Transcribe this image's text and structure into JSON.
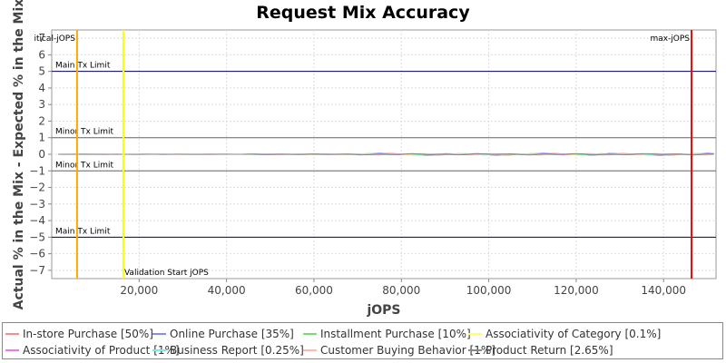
{
  "chart_data": {
    "type": "line",
    "title": "Request Mix Accuracy",
    "xlabel": "jOPS",
    "ylabel": "Actual % in the Mix - Expected % in the Mix",
    "xlim": [
      0,
      152000
    ],
    "ylim": [
      -7.5,
      7.5
    ],
    "x_ticks": [
      20000,
      40000,
      60000,
      80000,
      100000,
      120000,
      140000
    ],
    "x_tick_labels": [
      "20,000",
      "40,000",
      "60,000",
      "80,000",
      "100,000",
      "120,000",
      "140,000"
    ],
    "y_ticks": [
      7,
      6,
      5,
      4,
      3,
      2,
      1,
      0,
      -1,
      -2,
      -3,
      -4,
      -5,
      -6,
      -7
    ],
    "y_tick_labels": [
      "7",
      "6",
      "5",
      "4",
      "3",
      "2",
      "1",
      "0",
      "−1",
      "−2",
      "−3",
      "−4",
      "−5",
      "−6",
      "−7"
    ],
    "grid": true,
    "legend_position": "bottom",
    "horizontal_lines": [
      {
        "label": "Main Tx Limit",
        "y": 5,
        "color": "#000066"
      },
      {
        "label": "Minor Tx Limit",
        "y": 1,
        "color": "#666666"
      },
      {
        "label": "Minor Tx Limit",
        "y": -1,
        "color": "#666666"
      },
      {
        "label": "Main Tx Limit",
        "y": -5,
        "color": "#000066"
      }
    ],
    "vertical_lines": [
      {
        "label": "itical-jOPS",
        "x": 5800,
        "color": "#ffaa00"
      },
      {
        "label": "Validation Start jOPS",
        "x": 16400,
        "color": "#ffff00"
      },
      {
        "label": "max-jOPS",
        "x": 146400,
        "color": "#ff0000"
      }
    ],
    "series_x_start": 1500,
    "series_x_end": 152000,
    "series_x_step": 1500,
    "series": [
      {
        "name": "In-store Purchase [50%]",
        "color": "#ff8888",
        "amplitude": 0.06
      },
      {
        "name": "Online Purchase [35%]",
        "color": "#8888ff",
        "amplitude": 0.07
      },
      {
        "name": "Installment Purchase [10%]",
        "color": "#77dd77",
        "amplitude": 0.05
      },
      {
        "name": "Associativity of Category [0.1%]",
        "color": "#ffff66",
        "amplitude": 0.02
      },
      {
        "name": "Associativity of Product [1%]",
        "color": "#ee77ee",
        "amplitude": 0.03
      },
      {
        "name": "Business Report [0.25%]",
        "color": "#77eeee",
        "amplitude": 0.03
      },
      {
        "name": "Customer Buying Behavior [1%]",
        "color": "#ffbbaa",
        "amplitude": 0.05
      },
      {
        "name": "Product Return [2.65%]",
        "color": "#888888",
        "amplitude": 0.04
      }
    ]
  }
}
